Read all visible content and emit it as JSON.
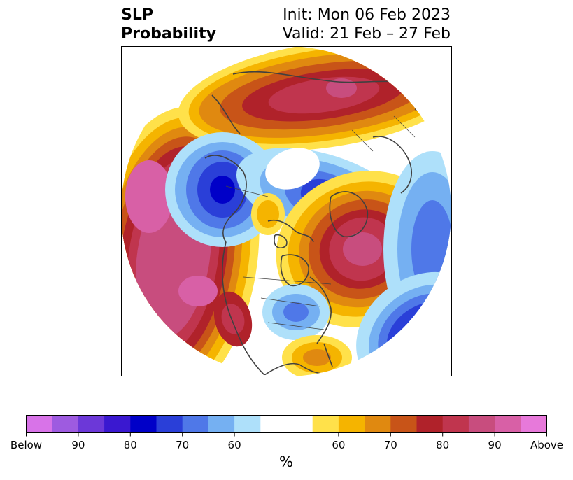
{
  "title": {
    "left_line1": "SLP",
    "left_line2": "Probability",
    "right_line1": "Init: Mon 06 Feb 2023",
    "right_line2": "Valid: 21 Feb – 27 Feb"
  },
  "colorbar": {
    "unit": "%",
    "colors": [
      "#d873e8",
      "#9e5be0",
      "#6c38d8",
      "#3a18d0",
      "#0000c8",
      "#2a3fd8",
      "#4f78e8",
      "#75b0f2",
      "#aee0fa",
      "#ffffff",
      "#ffffff",
      "#ffe14a",
      "#f5b400",
      "#e08910",
      "#c85418",
      "#b0222a",
      "#c0354e",
      "#c84d7e",
      "#d860a6",
      "#e779da"
    ],
    "tick_labels": [
      {
        "text": "Below",
        "frac": 0.0
      },
      {
        "text": "90",
        "frac": 0.1
      },
      {
        "text": "80",
        "frac": 0.2
      },
      {
        "text": "70",
        "frac": 0.3
      },
      {
        "text": "60",
        "frac": 0.4
      },
      {
        "text": "60",
        "frac": 0.6
      },
      {
        "text": "70",
        "frac": 0.7
      },
      {
        "text": "80",
        "frac": 0.8
      },
      {
        "text": "90",
        "frac": 0.9
      },
      {
        "text": "Above",
        "frac": 1.0
      }
    ]
  },
  "map": {
    "projection": "north-polar-stereographic",
    "colors": {
      "above_light": "#ffe14a",
      "above_60": "#f5b400",
      "above_70": "#e08910",
      "above_75": "#c85418",
      "above_80": "#b0222a",
      "above_85": "#c0354e",
      "above_90": "#c84d7e",
      "above_95": "#d860a6",
      "below_light": "#aee0fa",
      "below_60": "#75b0f2",
      "below_70": "#4f78e8",
      "below_80": "#2a3fd8",
      "below_90": "#0000c8",
      "coast": "#404040"
    }
  }
}
